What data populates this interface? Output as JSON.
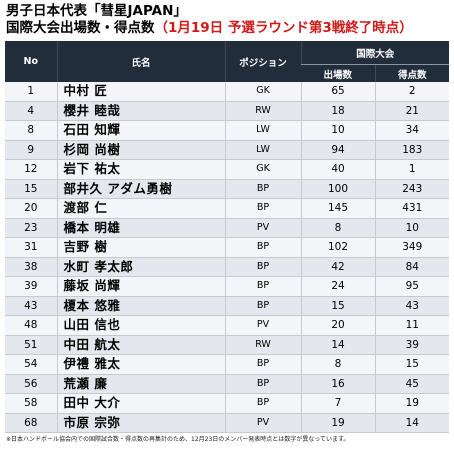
{
  "title": {
    "line1": "男子日本代表「彗星JAPAN」",
    "line2_main": "国際大会出場数・得点数",
    "line2_sub": "（1月19日 予選ラウンド第3戦終了時点）"
  },
  "table": {
    "headers": {
      "no": "No",
      "name": "氏名",
      "position": "ポジション",
      "group": "国際大会",
      "appearances": "出場数",
      "goals": "得点数"
    },
    "rows": [
      {
        "no": "1",
        "name": "中村 匠",
        "pos": "GK",
        "apps": "65",
        "goals": "2"
      },
      {
        "no": "4",
        "name": "櫻井 睦哉",
        "pos": "RW",
        "apps": "18",
        "goals": "21"
      },
      {
        "no": "8",
        "name": "石田 知輝",
        "pos": "LW",
        "apps": "10",
        "goals": "34"
      },
      {
        "no": "9",
        "name": "杉岡 尚樹",
        "pos": "LW",
        "apps": "94",
        "goals": "183"
      },
      {
        "no": "12",
        "name": "岩下 祐太",
        "pos": "GK",
        "apps": "40",
        "goals": "1"
      },
      {
        "no": "15",
        "name": "部井久 アダム勇樹",
        "pos": "BP",
        "apps": "100",
        "goals": "243"
      },
      {
        "no": "20",
        "name": "渡部 仁",
        "pos": "BP",
        "apps": "145",
        "goals": "431"
      },
      {
        "no": "23",
        "name": "橋本 明雄",
        "pos": "PV",
        "apps": "8",
        "goals": "10"
      },
      {
        "no": "31",
        "name": "吉野 樹",
        "pos": "BP",
        "apps": "102",
        "goals": "349"
      },
      {
        "no": "38",
        "name": "水町 孝太郎",
        "pos": "BP",
        "apps": "42",
        "goals": "84"
      },
      {
        "no": "39",
        "name": "藤坂 尚輝",
        "pos": "BP",
        "apps": "24",
        "goals": "95"
      },
      {
        "no": "43",
        "name": "榎本 悠雅",
        "pos": "BP",
        "apps": "15",
        "goals": "43"
      },
      {
        "no": "48",
        "name": "山田 信也",
        "pos": "PV",
        "apps": "20",
        "goals": "11"
      },
      {
        "no": "51",
        "name": "中田 航太",
        "pos": "RW",
        "apps": "14",
        "goals": "39"
      },
      {
        "no": "54",
        "name": "伊禮 雅太",
        "pos": "BP",
        "apps": "8",
        "goals": "15"
      },
      {
        "no": "56",
        "name": "荒瀬 廉",
        "pos": "BP",
        "apps": "16",
        "goals": "45"
      },
      {
        "no": "58",
        "name": "田中 大介",
        "pos": "BP",
        "apps": "7",
        "goals": "19"
      },
      {
        "no": "68",
        "name": "市原 宗弥",
        "pos": "PV",
        "apps": "19",
        "goals": "14"
      }
    ]
  },
  "footnote": "※日本ハンドボール協会内での国際試合数・得点数の再集計のため、12月23日のメンバー発表時点とは数字が異なっています。",
  "colors": {
    "header_bg": "#222d3b",
    "accent_red": "#d01919"
  }
}
